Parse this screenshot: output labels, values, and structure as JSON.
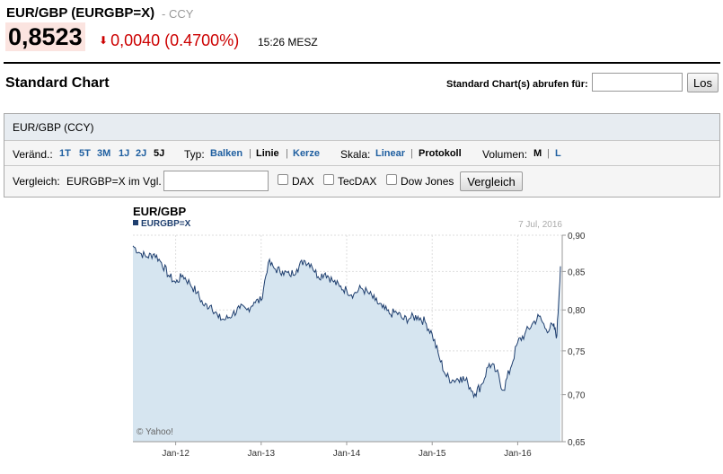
{
  "quote": {
    "title": "EUR/GBP (EURGBP=X)",
    "type_label": "- CCY",
    "price": "0,8523",
    "change": "0,0040",
    "change_pct": "(0.4700%)",
    "time": "15:26 MESZ"
  },
  "colors": {
    "down": "#cc0000",
    "link": "#1f5fa0",
    "line": "#1f3f6f",
    "area": "#d6e5f0"
  },
  "section": {
    "title": "Standard Chart",
    "lookup_label": "Standard Chart(s) abrufen für:",
    "lookup_value": "",
    "lookup_button": "Los"
  },
  "panel": {
    "title": "EUR/GBP (CCY)",
    "range_label": "Veränd.:",
    "ranges": [
      "1T",
      "5T",
      "3M",
      "1J",
      "2J",
      "5J"
    ],
    "active_range": "5J",
    "type_label": "Typ:",
    "types": [
      "Balken",
      "Linie",
      "Kerze"
    ],
    "active_type": "Linie",
    "scale_label": "Skala:",
    "scales": [
      "Linear",
      "Protokoll"
    ],
    "active_scale": "Protokoll",
    "volume_label": "Volumen:",
    "volumes": [
      "M",
      "L"
    ],
    "active_volume": "M",
    "compare_label": "Vergleich:",
    "compare_sub": "EURGBP=X im Vgl.",
    "compare_value": "",
    "checkboxes": [
      "DAX",
      "TecDAX",
      "Dow Jones"
    ],
    "compare_button": "Vergleich"
  },
  "chart_data": {
    "type": "area",
    "title": "EUR/GBP",
    "legend": "EURGBP=X",
    "date_label": "7 Jul, 2016",
    "watermark": "© Yahoo!",
    "scale": "log",
    "yticks": [
      "0,90",
      "0,85",
      "0,80",
      "0,75",
      "0,70",
      "0,65"
    ],
    "xticks": [
      "Jan-12",
      "Jan-13",
      "Jan-14",
      "Jan-15",
      "Jan-16"
    ],
    "x_domain": [
      "Jul-11",
      "Jul-16"
    ],
    "ylim": [
      0.65,
      0.9
    ],
    "series": [
      {
        "name": "EURGBP=X",
        "points": [
          [
            "Jul-11",
            0.885
          ],
          [
            "Aug-11",
            0.875
          ],
          [
            "Sep-11",
            0.87
          ],
          [
            "Oct-11",
            0.874
          ],
          [
            "Nov-11",
            0.862
          ],
          [
            "Dec-11",
            0.845
          ],
          [
            "Jan-12",
            0.835
          ],
          [
            "Feb-12",
            0.845
          ],
          [
            "Mar-12",
            0.834
          ],
          [
            "Apr-12",
            0.822
          ],
          [
            "May-12",
            0.805
          ],
          [
            "Jun-12",
            0.806
          ],
          [
            "Jul-12",
            0.79
          ],
          [
            "Aug-12",
            0.788
          ],
          [
            "Sep-12",
            0.795
          ],
          [
            "Oct-12",
            0.802
          ],
          [
            "Nov-12",
            0.8
          ],
          [
            "Dec-12",
            0.81
          ],
          [
            "Jan-13",
            0.812
          ],
          [
            "Feb-13",
            0.862
          ],
          [
            "Mar-13",
            0.853
          ],
          [
            "Apr-13",
            0.85
          ],
          [
            "May-13",
            0.845
          ],
          [
            "Jun-13",
            0.853
          ],
          [
            "Jul-13",
            0.865
          ],
          [
            "Aug-13",
            0.86
          ],
          [
            "Sep-13",
            0.843
          ],
          [
            "Oct-13",
            0.848
          ],
          [
            "Nov-13",
            0.838
          ],
          [
            "Dec-13",
            0.83
          ],
          [
            "Jan-14",
            0.825
          ],
          [
            "Feb-14",
            0.82
          ],
          [
            "Mar-14",
            0.828
          ],
          [
            "Apr-14",
            0.822
          ],
          [
            "May-14",
            0.812
          ],
          [
            "Jun-14",
            0.803
          ],
          [
            "Jul-14",
            0.795
          ],
          [
            "Aug-14",
            0.797
          ],
          [
            "Sep-14",
            0.788
          ],
          [
            "Oct-14",
            0.79
          ],
          [
            "Nov-14",
            0.792
          ],
          [
            "Dec-14",
            0.785
          ],
          [
            "Jan-15",
            0.77
          ],
          [
            "Feb-15",
            0.742
          ],
          [
            "Mar-15",
            0.72
          ],
          [
            "Apr-15",
            0.716
          ],
          [
            "May-15",
            0.72
          ],
          [
            "Jun-15",
            0.713
          ],
          [
            "Jul-15",
            0.701
          ],
          [
            "Aug-15",
            0.712
          ],
          [
            "Sep-15",
            0.735
          ],
          [
            "Oct-15",
            0.726
          ],
          [
            "Nov-15",
            0.705
          ],
          [
            "Dec-15",
            0.73
          ],
          [
            "Jan-16",
            0.76
          ],
          [
            "Feb-16",
            0.77
          ],
          [
            "Mar-16",
            0.782
          ],
          [
            "Apr-16",
            0.792
          ],
          [
            "May-16",
            0.776
          ],
          [
            "Jun-16",
            0.78
          ],
          [
            "Jun-16b",
            0.768
          ],
          [
            "Jul-16",
            0.857
          ]
        ]
      }
    ]
  }
}
